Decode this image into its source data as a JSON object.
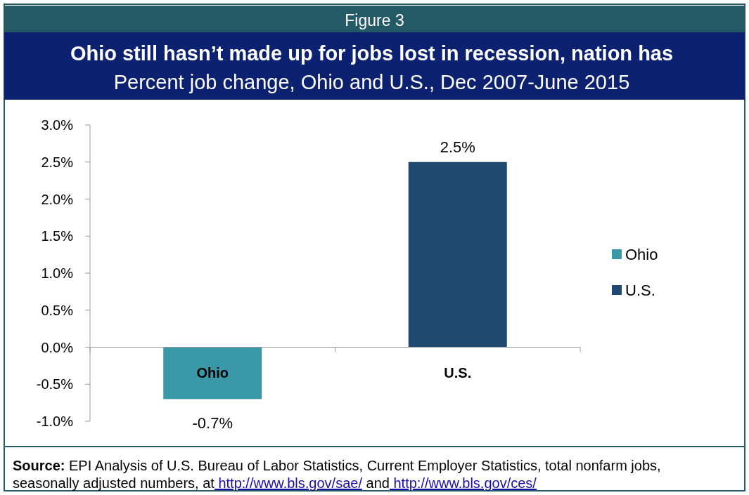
{
  "chart_data": {
    "type": "bar",
    "title": "Ohio still hasn’t made up for jobs lost in recession, nation has",
    "subtitle": "Percent job change, Ohio and U.S., Dec 2007-June 2015",
    "annotations": [
      "Figure 3",
      "Source: EPI Analysis of U.S. Bureau of Labor Statistics, Current Employer Statistics, total nonfarm jobs, seasonally adjusted numbers, at http://www.bls.gov/sae/ and http://www.bls.gov/ces/"
    ],
    "categories": [
      "Ohio",
      "U.S."
    ],
    "series": [
      {
        "name": "Ohio",
        "color": "#3a98a8",
        "values": [
          -0.7,
          null
        ],
        "value_labels": [
          "-0.7%",
          null
        ]
      },
      {
        "name": "U.S.",
        "color": "#1f4970",
        "values": [
          null,
          2.5
        ],
        "value_labels": [
          null,
          "2.5%"
        ]
      }
    ],
    "ylim": [
      -1,
      3
    ],
    "yticks": [
      {
        "value": -1,
        "label": "-1.0%"
      },
      {
        "value": -0.5,
        "label": "-0.5%"
      },
      {
        "value": 0,
        "label": "0.0%"
      },
      {
        "value": 0.5,
        "label": "0.5%"
      },
      {
        "value": 1,
        "label": "1.0%"
      },
      {
        "value": 1.5,
        "label": "1.5%"
      },
      {
        "value": 2,
        "label": "2.0%"
      },
      {
        "value": 2.5,
        "label": "2.5%"
      },
      {
        "value": 3,
        "label": "3.0%"
      }
    ],
    "grid": false,
    "legend": "right"
  }
}
